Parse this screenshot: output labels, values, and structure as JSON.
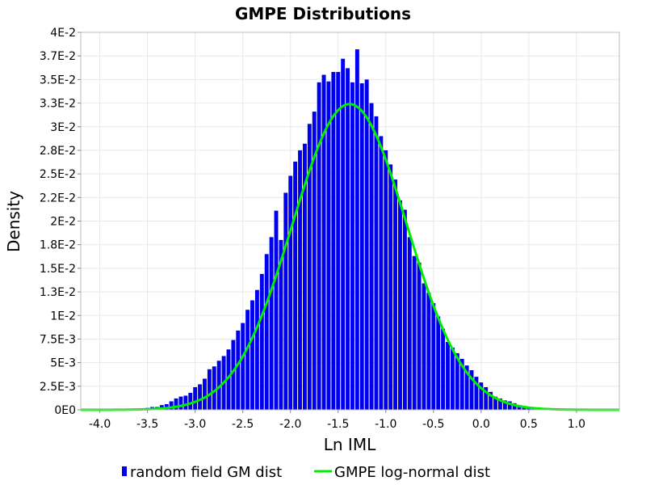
{
  "chart_data": {
    "type": "bar",
    "title": "GMPE Distributions",
    "xlabel": "Ln IML",
    "ylabel": "Density",
    "xlim": [
      -4.2,
      1.45
    ],
    "ylim": [
      0,
      0.04
    ],
    "x_ticks": [
      {
        "value": -4.0,
        "label": "-4.0"
      },
      {
        "value": -3.5,
        "label": "-3.5"
      },
      {
        "value": -3.0,
        "label": "-3.0"
      },
      {
        "value": -2.5,
        "label": "-2.5"
      },
      {
        "value": -2.0,
        "label": "-2.0"
      },
      {
        "value": -1.5,
        "label": "-1.5"
      },
      {
        "value": -1.0,
        "label": "-1.0"
      },
      {
        "value": -0.5,
        "label": "-0.5"
      },
      {
        "value": 0.0,
        "label": "0.0"
      },
      {
        "value": 0.5,
        "label": "0.5"
      },
      {
        "value": 1.0,
        "label": "1.0"
      }
    ],
    "y_ticks": [
      {
        "value": 0,
        "label": "0E0"
      },
      {
        "value": 0.0025,
        "label": "2.5E-3"
      },
      {
        "value": 0.005,
        "label": "5E-3"
      },
      {
        "value": 0.0075,
        "label": "7.5E-3"
      },
      {
        "value": 0.01,
        "label": "1E-2"
      },
      {
        "value": 0.0125,
        "label": "1.3E-2"
      },
      {
        "value": 0.015,
        "label": "1.5E-2"
      },
      {
        "value": 0.0175,
        "label": "1.8E-2"
      },
      {
        "value": 0.02,
        "label": "2E-2"
      },
      {
        "value": 0.0225,
        "label": "2.2E-2"
      },
      {
        "value": 0.025,
        "label": "2.5E-2"
      },
      {
        "value": 0.0275,
        "label": "2.8E-2"
      },
      {
        "value": 0.03,
        "label": "3E-2"
      },
      {
        "value": 0.0325,
        "label": "3.3E-2"
      },
      {
        "value": 0.035,
        "label": "3.5E-2"
      },
      {
        "value": 0.0375,
        "label": "3.7E-2"
      },
      {
        "value": 0.04,
        "label": "4E-2"
      }
    ],
    "grid": true,
    "legend_position": "bottom",
    "series": [
      {
        "name": "random field GM dist",
        "kind": "bar",
        "color": "#0000ee",
        "bin_width": 0.05,
        "x": [
          -3.65,
          -3.6,
          -3.55,
          -3.5,
          -3.45,
          -3.4,
          -3.35,
          -3.3,
          -3.25,
          -3.2,
          -3.15,
          -3.1,
          -3.05,
          -3.0,
          -2.95,
          -2.9,
          -2.85,
          -2.8,
          -2.75,
          -2.7,
          -2.65,
          -2.6,
          -2.55,
          -2.5,
          -2.45,
          -2.4,
          -2.35,
          -2.3,
          -2.25,
          -2.2,
          -2.15,
          -2.1,
          -2.05,
          -2.0,
          -1.95,
          -1.9,
          -1.85,
          -1.8,
          -1.75,
          -1.7,
          -1.65,
          -1.6,
          -1.55,
          -1.5,
          -1.45,
          -1.4,
          -1.35,
          -1.3,
          -1.25,
          -1.2,
          -1.15,
          -1.1,
          -1.05,
          -1.0,
          -0.95,
          -0.9,
          -0.85,
          -0.8,
          -0.75,
          -0.7,
          -0.65,
          -0.6,
          -0.55,
          -0.5,
          -0.45,
          -0.4,
          -0.35,
          -0.3,
          -0.25,
          -0.2,
          -0.15,
          -0.1,
          -0.05,
          0.0,
          0.05,
          0.1,
          0.15,
          0.2,
          0.25,
          0.3,
          0.35,
          0.4,
          0.45,
          0.5,
          0.55,
          0.6,
          0.65,
          0.7,
          0.75,
          0.8
        ],
        "values": [
          0.0001,
          0.0001,
          0.0001,
          0.0002,
          0.0003,
          0.0003,
          0.0005,
          0.0006,
          0.0009,
          0.0012,
          0.0014,
          0.0015,
          0.0018,
          0.0024,
          0.0027,
          0.0033,
          0.0043,
          0.0046,
          0.0052,
          0.0057,
          0.0064,
          0.0074,
          0.0084,
          0.0092,
          0.0106,
          0.0116,
          0.0127,
          0.0144,
          0.0165,
          0.0183,
          0.0211,
          0.018,
          0.023,
          0.0248,
          0.0263,
          0.0275,
          0.0282,
          0.0303,
          0.0316,
          0.0347,
          0.0355,
          0.0348,
          0.0358,
          0.0358,
          0.0372,
          0.0362,
          0.0347,
          0.0382,
          0.0346,
          0.035,
          0.0325,
          0.0311,
          0.029,
          0.0275,
          0.026,
          0.0244,
          0.0222,
          0.0212,
          0.0183,
          0.0163,
          0.0156,
          0.0134,
          0.0124,
          0.0113,
          0.0099,
          0.0086,
          0.0072,
          0.0066,
          0.006,
          0.0054,
          0.0047,
          0.0042,
          0.0035,
          0.0029,
          0.0024,
          0.0019,
          0.0014,
          0.0012,
          0.001,
          0.0009,
          0.0007,
          0.0005,
          0.0003,
          0.0002,
          0.0002,
          0.0002,
          0.0001,
          0.0001,
          0.0001,
          0.0001
        ]
      },
      {
        "name": "GMPE log-normal dist",
        "kind": "line",
        "color": "#00ee00",
        "mean": -1.38,
        "std": 0.6,
        "peak_density": 0.0324
      }
    ]
  }
}
